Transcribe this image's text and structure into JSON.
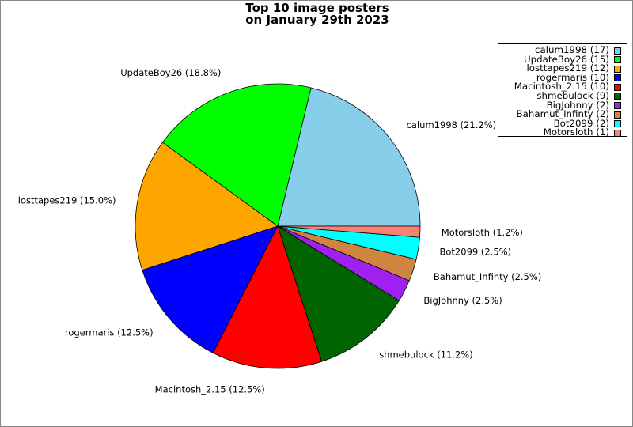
{
  "chart_data": {
    "type": "pie",
    "title": [
      "Top 10 image posters",
      "on January 29th 2023"
    ],
    "legend_position": "top-right",
    "slices": [
      {
        "name": "calum1998",
        "count": 17,
        "percent": "21.2%",
        "color": "#87CEEB"
      },
      {
        "name": "UpdateBoy26",
        "count": 15,
        "percent": "18.8%",
        "color": "#00FF00"
      },
      {
        "name": "losttapes219",
        "count": 12,
        "percent": "15.0%",
        "color": "#FFA500"
      },
      {
        "name": "rogermaris",
        "count": 10,
        "percent": "12.5%",
        "color": "#0000FF"
      },
      {
        "name": "Macintosh_2.15",
        "count": 10,
        "percent": "12.5%",
        "color": "#FF0000"
      },
      {
        "name": "shmebulock",
        "count": 9,
        "percent": "11.2%",
        "color": "#006400"
      },
      {
        "name": "BigJohnny",
        "count": 2,
        "percent": "2.5%",
        "color": "#A020F0"
      },
      {
        "name": "Bahamut_Infinty",
        "count": 2,
        "percent": "2.5%",
        "color": "#CD853F"
      },
      {
        "name": "Bot2099",
        "count": 2,
        "percent": "2.5%",
        "color": "#00FFFF"
      },
      {
        "name": "Motorsloth",
        "count": 1,
        "percent": "1.2%",
        "color": "#FA8072"
      }
    ]
  }
}
